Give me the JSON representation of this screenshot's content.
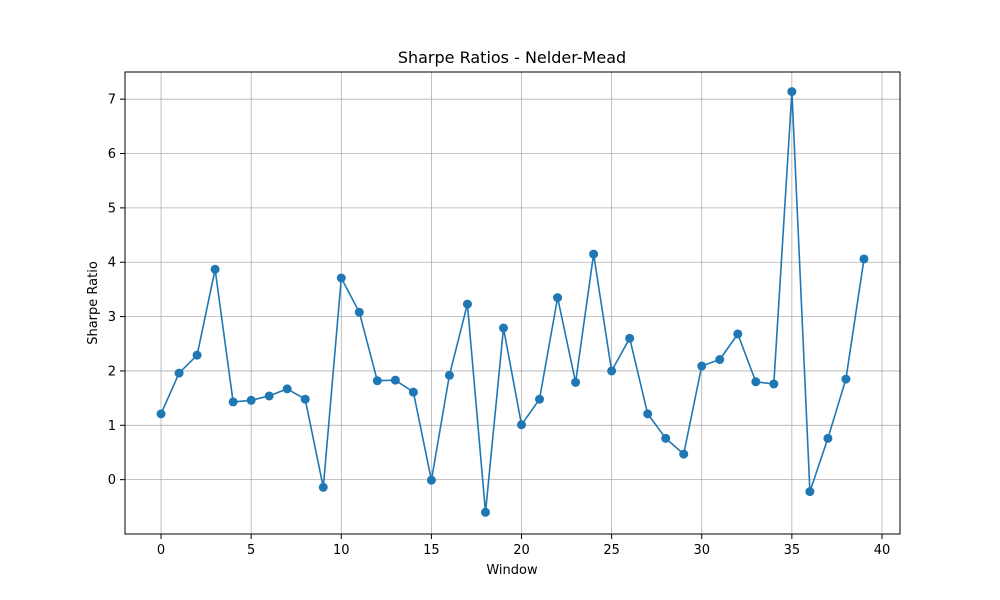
{
  "chart_data": {
    "type": "line",
    "title": "Sharpe Ratios - Nelder-Mead",
    "xlabel": "Window",
    "ylabel": "Sharpe Ratio",
    "xlim": [
      -2,
      41
    ],
    "ylim": [
      -1.0,
      7.5
    ],
    "xticks": [
      0,
      5,
      10,
      15,
      20,
      25,
      30,
      35,
      40
    ],
    "yticks": [
      0,
      1,
      2,
      3,
      4,
      5,
      6,
      7
    ],
    "grid": true,
    "line_color": "#1f77b4",
    "marker": "circle",
    "series": [
      {
        "x": [
          0,
          1,
          2,
          3,
          4,
          5,
          6,
          7,
          8,
          9,
          10,
          11,
          12,
          13,
          14,
          15,
          16,
          17,
          18,
          19,
          20,
          21,
          22,
          23,
          24,
          25,
          26,
          27,
          28,
          29,
          30,
          31,
          32,
          33,
          34,
          35,
          36,
          37,
          38,
          39
        ],
        "values": [
          1.21,
          1.96,
          2.29,
          3.87,
          1.43,
          1.46,
          1.54,
          1.67,
          1.48,
          -0.14,
          3.71,
          3.08,
          1.82,
          1.83,
          1.61,
          -0.01,
          1.92,
          3.23,
          -0.6,
          2.79,
          1.01,
          1.48,
          3.35,
          1.79,
          4.15,
          2.0,
          2.6,
          1.21,
          0.76,
          0.47,
          2.09,
          2.21,
          2.68,
          1.8,
          1.76,
          7.14,
          -0.22,
          0.76,
          1.85,
          4.06
        ]
      }
    ]
  }
}
